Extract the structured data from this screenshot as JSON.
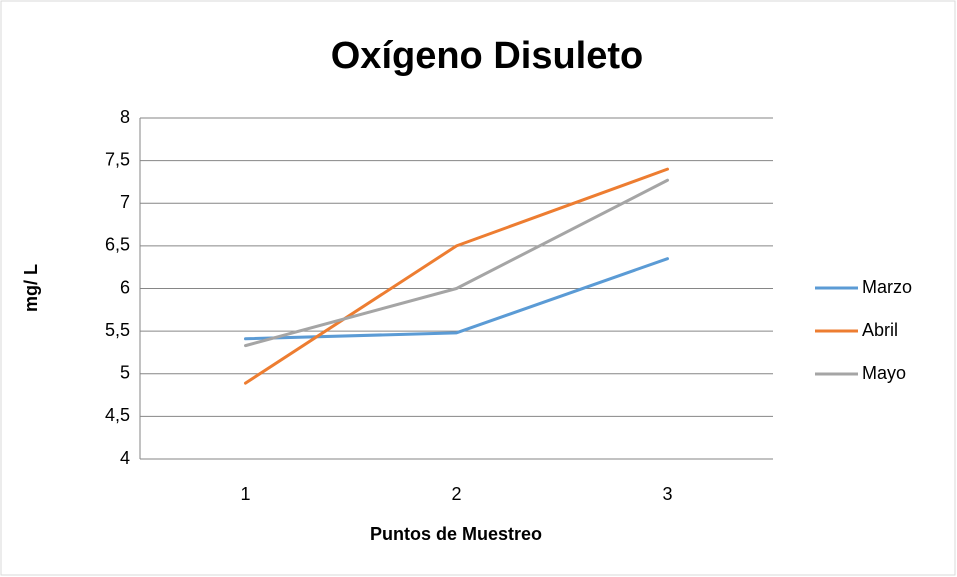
{
  "chart_data": {
    "type": "line",
    "title": "Oxígeno Disuleto",
    "x_label": "Puntos de  Muestreo",
    "y_label": "mg/ L",
    "categories": [
      "1",
      "2",
      "3"
    ],
    "series": [
      {
        "name": "Marzo",
        "color": "#5b9bd5",
        "values": [
          5.41,
          5.48,
          6.35
        ]
      },
      {
        "name": "Abril",
        "color": "#ed7d31",
        "values": [
          4.89,
          6.5,
          7.4
        ]
      },
      {
        "name": "Mayo",
        "color": "#a5a5a5",
        "values": [
          5.33,
          6.0,
          7.27
        ]
      }
    ],
    "ylim": [
      4,
      8
    ],
    "yticks": [
      4,
      {
        "value": 4.5,
        "label": "4,5"
      },
      5,
      {
        "value": 5.5,
        "label": "5,5"
      },
      6,
      {
        "value": 6.5,
        "label": "6,5"
      },
      7,
      {
        "value": 7.5,
        "label": "7,5"
      },
      8
    ],
    "grid": true,
    "legend": "right"
  }
}
